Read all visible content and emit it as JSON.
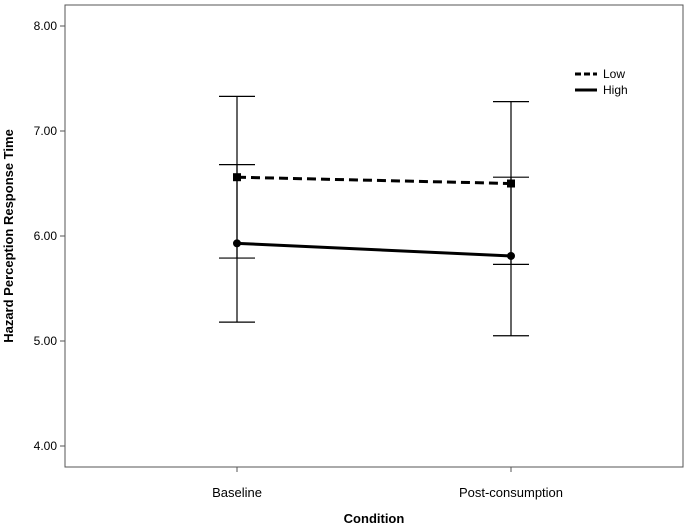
{
  "chart_data": {
    "type": "line",
    "title": "",
    "xlabel": "Condition",
    "ylabel": "Hazard Perception Response Time",
    "categories": [
      "Baseline",
      "Post-consumption"
    ],
    "ylim": [
      3.8,
      8.2
    ],
    "yticks": [
      4.0,
      5.0,
      6.0,
      7.0,
      8.0
    ],
    "ytick_labels": [
      "4.00",
      "5.00",
      "6.00",
      "7.00",
      "8.00"
    ],
    "grid": false,
    "legend_position": "top-right",
    "series": [
      {
        "name": "Low",
        "line_style": "dashed",
        "marker": "square",
        "color": "#000000",
        "values": [
          6.56,
          6.5
        ],
        "error_low": [
          5.79,
          5.73
        ],
        "error_high": [
          7.33,
          7.28
        ]
      },
      {
        "name": "High",
        "line_style": "solid",
        "marker": "circle",
        "color": "#000000",
        "values": [
          5.93,
          5.81
        ],
        "error_low": [
          5.18,
          5.05
        ],
        "error_high": [
          6.68,
          6.56
        ]
      }
    ]
  }
}
